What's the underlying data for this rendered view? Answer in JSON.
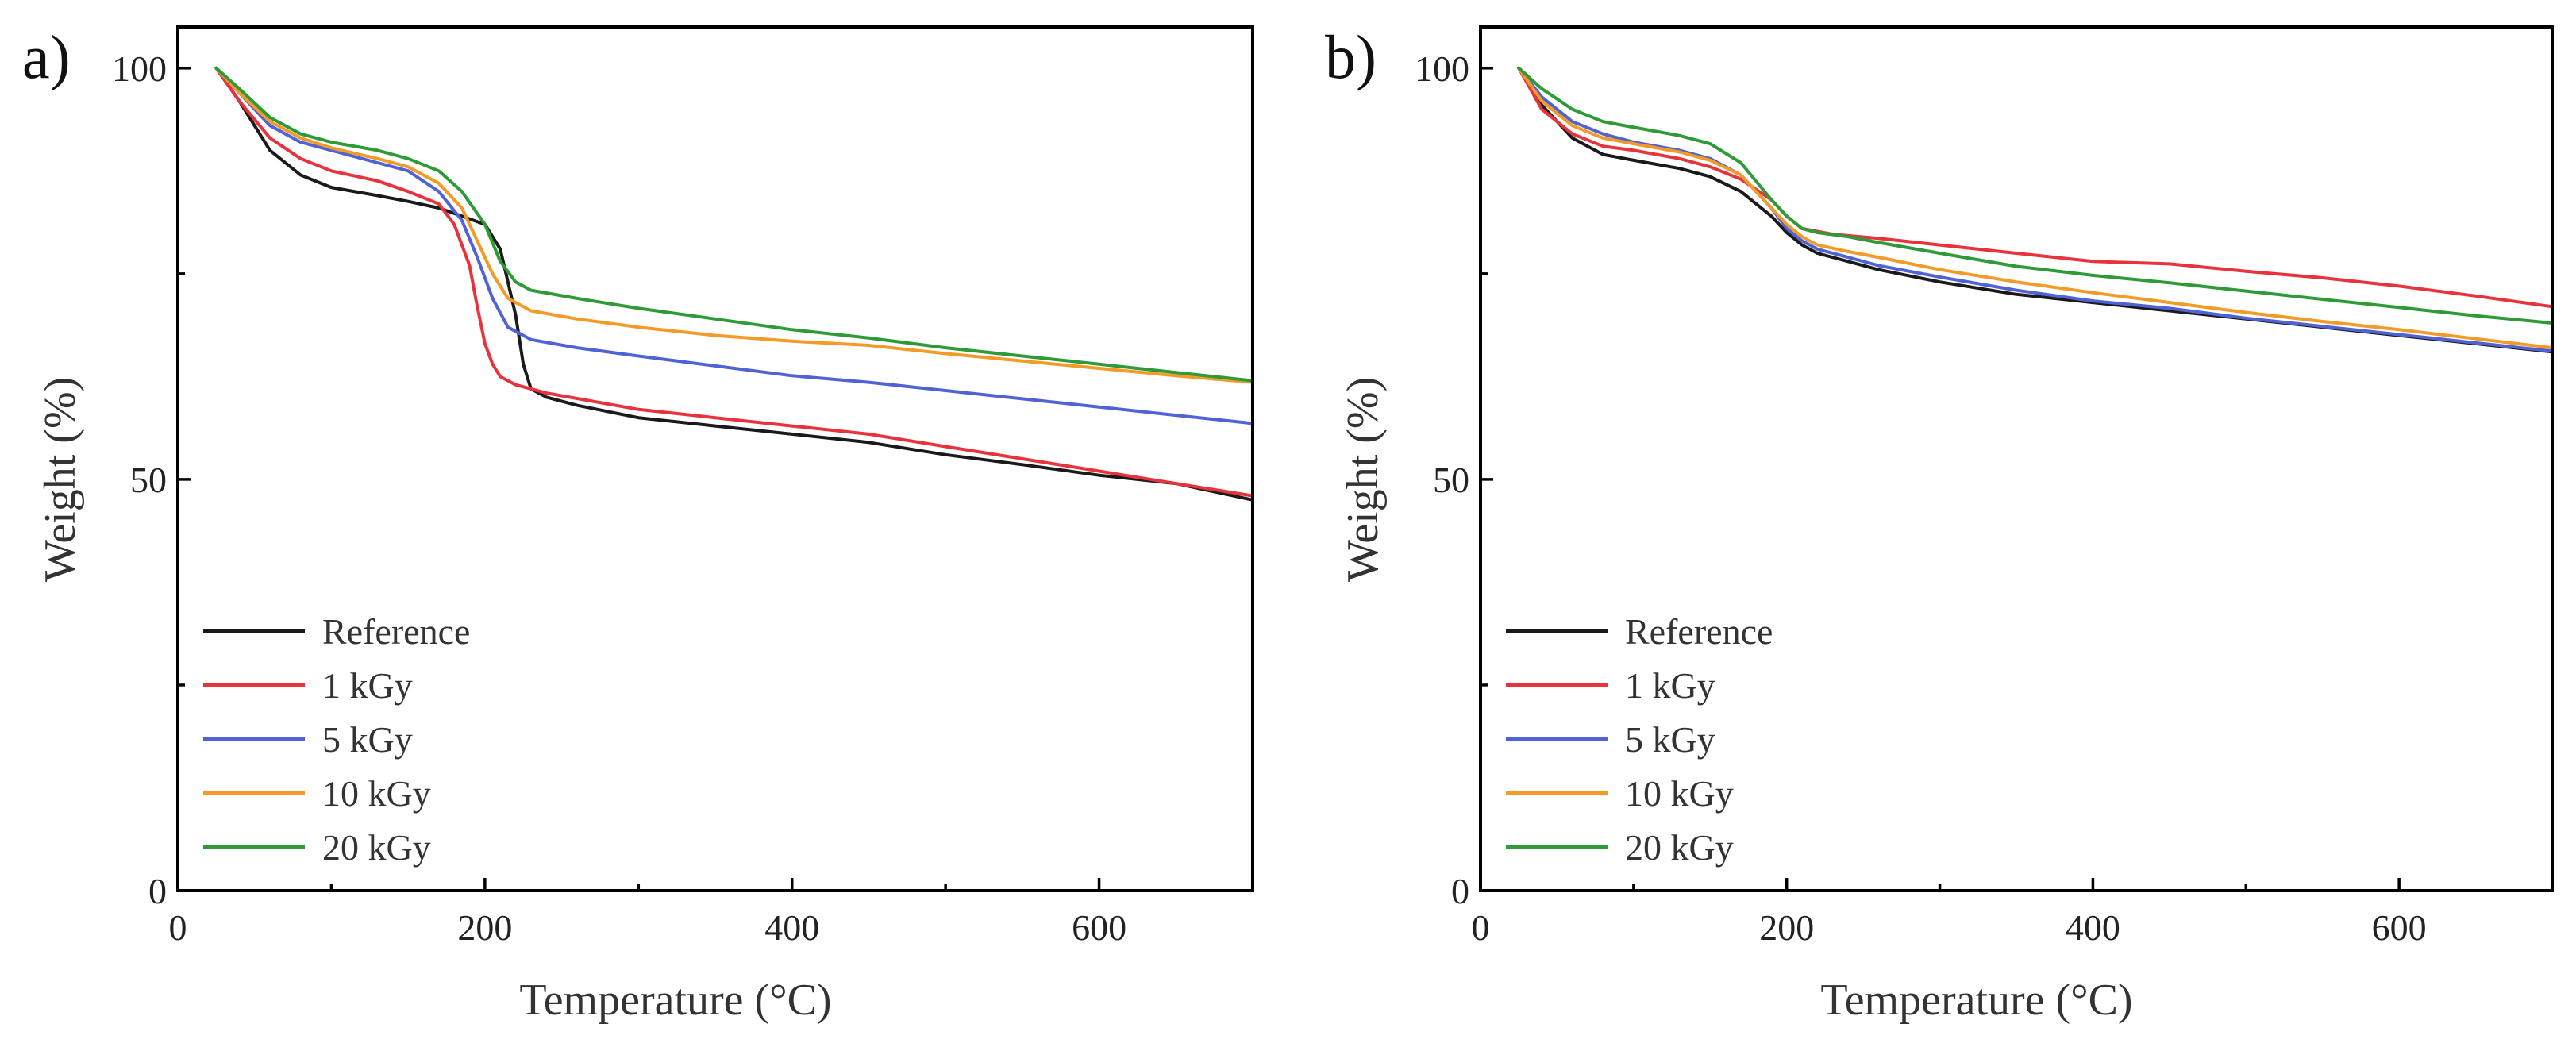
{
  "chart_data": [
    {
      "type": "line",
      "panel_label": "a)",
      "title": "",
      "xlabel": "Temperature (°C)",
      "ylabel": "Weight (%)",
      "xlim": [
        0,
        700
      ],
      "ylim": [
        0,
        105
      ],
      "xticks": [
        0,
        200,
        400,
        600
      ],
      "yticks": [
        0,
        50,
        100
      ],
      "grid": false,
      "legend_position": "lower-left",
      "series": [
        {
          "name": "Reference",
          "color": "#1a1a1a",
          "x": [
            25,
            40,
            60,
            80,
            100,
            130,
            150,
            170,
            185,
            200,
            210,
            220,
            225,
            230,
            240,
            260,
            300,
            350,
            400,
            450,
            500,
            550,
            600,
            650,
            700
          ],
          "y": [
            100,
            96,
            90,
            87,
            85.5,
            84.5,
            83.8,
            83,
            82,
            81,
            78,
            70,
            64,
            61,
            60,
            59,
            57.5,
            56.5,
            55.5,
            54.5,
            53,
            51.8,
            50.5,
            49.5,
            47.5
          ]
        },
        {
          "name": "1 kGy",
          "color": "#e8333c",
          "x": [
            25,
            40,
            60,
            80,
            100,
            130,
            150,
            170,
            180,
            190,
            195,
            200,
            205,
            210,
            220,
            240,
            300,
            350,
            400,
            450,
            500,
            550,
            600,
            650,
            700
          ],
          "y": [
            100,
            96,
            91.5,
            89,
            87.5,
            86.3,
            85,
            83.5,
            81,
            76,
            71,
            66.5,
            64,
            62.5,
            61.5,
            60.5,
            58.5,
            57.5,
            56.5,
            55.5,
            54,
            52.5,
            51,
            49.5,
            48
          ]
        },
        {
          "name": "5 kGy",
          "color": "#4f63d6",
          "x": [
            25,
            40,
            60,
            80,
            100,
            130,
            150,
            170,
            185,
            195,
            205,
            215,
            230,
            260,
            300,
            350,
            400,
            450,
            500,
            550,
            600,
            650,
            700
          ],
          "y": [
            100,
            97,
            93,
            91,
            90,
            88.5,
            87.5,
            85,
            81.5,
            77,
            72,
            68.5,
            67,
            66,
            65,
            63.8,
            62.6,
            61.8,
            60.8,
            59.8,
            58.8,
            57.8,
            56.8
          ]
        },
        {
          "name": "10 kGy",
          "color": "#f39a27",
          "x": [
            25,
            40,
            60,
            80,
            100,
            130,
            150,
            170,
            185,
            195,
            205,
            215,
            230,
            260,
            300,
            350,
            400,
            450,
            500,
            550,
            600,
            650,
            700
          ],
          "y": [
            100,
            97,
            93.5,
            91.5,
            90.3,
            89,
            88,
            86,
            83,
            79,
            75,
            72,
            70.5,
            69.5,
            68.5,
            67.5,
            66.8,
            66.3,
            65.3,
            64.4,
            63.5,
            62.6,
            61.8
          ]
        },
        {
          "name": "20 kGy",
          "color": "#2f9a38",
          "x": [
            25,
            40,
            60,
            80,
            100,
            130,
            150,
            170,
            185,
            200,
            210,
            220,
            230,
            260,
            300,
            350,
            400,
            450,
            500,
            550,
            600,
            650,
            700
          ],
          "y": [
            100,
            97.5,
            94,
            92,
            91,
            90,
            89,
            87.5,
            85,
            81,
            76.5,
            74,
            73,
            72,
            70.8,
            69.5,
            68.2,
            67.2,
            66,
            65,
            64,
            63,
            62
          ]
        }
      ]
    },
    {
      "type": "line",
      "panel_label": "b)",
      "title": "",
      "xlabel": "Temperature (°C)",
      "ylabel": "Weight (%)",
      "xlim": [
        0,
        700
      ],
      "ylim": [
        0,
        105
      ],
      "xticks": [
        0,
        200,
        400,
        600
      ],
      "yticks": [
        0,
        50,
        100
      ],
      "grid": false,
      "legend_position": "lower-left",
      "series": [
        {
          "name": "Reference",
          "color": "#1a1a1a",
          "x": [
            25,
            40,
            60,
            80,
            100,
            130,
            150,
            170,
            190,
            200,
            210,
            220,
            240,
            260,
            300,
            350,
            400,
            450,
            500,
            550,
            600,
            650,
            700
          ],
          "y": [
            100,
            95.5,
            91.5,
            89.5,
            88.8,
            87.8,
            86.8,
            85,
            82,
            80,
            78.5,
            77.5,
            76.5,
            75.5,
            74,
            72.5,
            71.5,
            70.5,
            69.5,
            68.5,
            67.5,
            66.5,
            65.5
          ]
        },
        {
          "name": "1 kGy",
          "color": "#e8333c",
          "x": [
            25,
            40,
            60,
            80,
            100,
            130,
            150,
            170,
            190,
            200,
            210,
            230,
            260,
            300,
            350,
            400,
            450,
            500,
            550,
            600,
            650,
            700
          ],
          "y": [
            100,
            95,
            92,
            90.5,
            90,
            89,
            88,
            86.5,
            84,
            82,
            80.5,
            79.8,
            79.3,
            78.5,
            77.5,
            76.5,
            76.2,
            75.3,
            74.5,
            73.5,
            72.3,
            71
          ]
        },
        {
          "name": "5 kGy",
          "color": "#4f63d6",
          "x": [
            25,
            40,
            60,
            80,
            100,
            130,
            150,
            170,
            190,
            200,
            210,
            220,
            240,
            260,
            300,
            350,
            400,
            450,
            500,
            550,
            600,
            650,
            700
          ],
          "y": [
            100,
            96.5,
            93.5,
            92,
            91,
            90,
            89,
            87,
            83,
            80.5,
            79,
            78,
            77,
            76,
            74.6,
            73,
            71.7,
            70.8,
            69.6,
            68.6,
            67.6,
            66.6,
            65.6
          ]
        },
        {
          "name": "10 kGy",
          "color": "#f39a27",
          "x": [
            25,
            40,
            60,
            80,
            100,
            130,
            150,
            170,
            190,
            200,
            210,
            220,
            240,
            260,
            300,
            350,
            400,
            450,
            500,
            550,
            600,
            650,
            700
          ],
          "y": [
            100,
            96,
            93,
            91.5,
            90.8,
            89.8,
            88.8,
            87,
            83,
            81,
            79.5,
            78.5,
            77.7,
            77,
            75.5,
            74,
            72.7,
            71.5,
            70.3,
            69.2,
            68.2,
            67.1,
            66
          ]
        },
        {
          "name": "20 kGy",
          "color": "#2f9a38",
          "x": [
            25,
            40,
            60,
            80,
            100,
            130,
            150,
            170,
            190,
            200,
            210,
            220,
            240,
            260,
            300,
            350,
            400,
            450,
            500,
            550,
            600,
            650,
            700
          ],
          "y": [
            100,
            97.5,
            95,
            93.5,
            92.8,
            91.8,
            90.8,
            88.5,
            84,
            82,
            80.5,
            80,
            79.5,
            78.8,
            77.5,
            75.9,
            74.8,
            73.9,
            72.9,
            71.9,
            70.9,
            69.9,
            69
          ]
        }
      ]
    }
  ]
}
